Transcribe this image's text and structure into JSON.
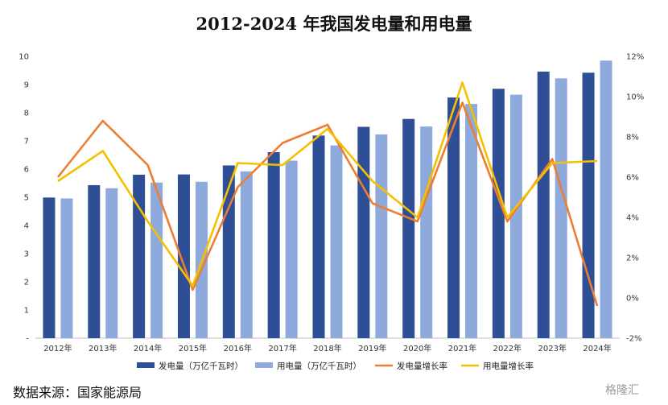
{
  "title": "2012-2024 年我国发电量和用电量",
  "source": "数据来源：国家能源局",
  "watermark": "格隆汇",
  "chart_data": {
    "type": "bar",
    "categories": [
      "2012年",
      "2013年",
      "2014年",
      "2015年",
      "2016年",
      "2017年",
      "2018年",
      "2019年",
      "2020年",
      "2021年",
      "2022年",
      "2023年",
      "2024年"
    ],
    "left_axis": {
      "ticks": [
        "-",
        "1",
        "2",
        "3",
        "4",
        "5",
        "6",
        "7",
        "8",
        "9",
        "10"
      ],
      "ylim": [
        0,
        10
      ]
    },
    "right_axis": {
      "ticks": [
        "-2%",
        "0%",
        "2%",
        "4%",
        "6%",
        "8%",
        "10%",
        "12%"
      ],
      "ylim": [
        -2,
        12
      ],
      "unit": "%"
    },
    "series": [
      {
        "name": "发电量（万亿千瓦时）",
        "kind": "bar",
        "axis": "left",
        "color": "#2e4f96",
        "values": [
          4.99,
          5.43,
          5.8,
          5.81,
          6.13,
          6.6,
          7.19,
          7.5,
          7.78,
          8.54,
          8.85,
          9.46,
          9.42
        ]
      },
      {
        "name": "用电量（万亿千瓦时）",
        "kind": "bar",
        "axis": "left",
        "color": "#8ea9dc",
        "values": [
          4.96,
          5.32,
          5.52,
          5.55,
          5.92,
          6.3,
          6.84,
          7.23,
          7.51,
          8.31,
          8.64,
          9.22,
          9.85
        ]
      },
      {
        "name": "发电量增长率",
        "kind": "line",
        "axis": "right",
        "color": "#ed7d31",
        "values": [
          6.0,
          8.8,
          6.6,
          0.4,
          5.5,
          7.7,
          8.6,
          4.7,
          3.8,
          9.7,
          3.8,
          6.9,
          -0.4
        ]
      },
      {
        "name": "用电量增长率",
        "kind": "line",
        "axis": "right",
        "color": "#f5c000",
        "values": [
          5.8,
          7.3,
          3.8,
          0.6,
          6.7,
          6.6,
          8.4,
          5.8,
          4.0,
          10.7,
          4.0,
          6.7,
          6.8
        ]
      }
    ]
  }
}
